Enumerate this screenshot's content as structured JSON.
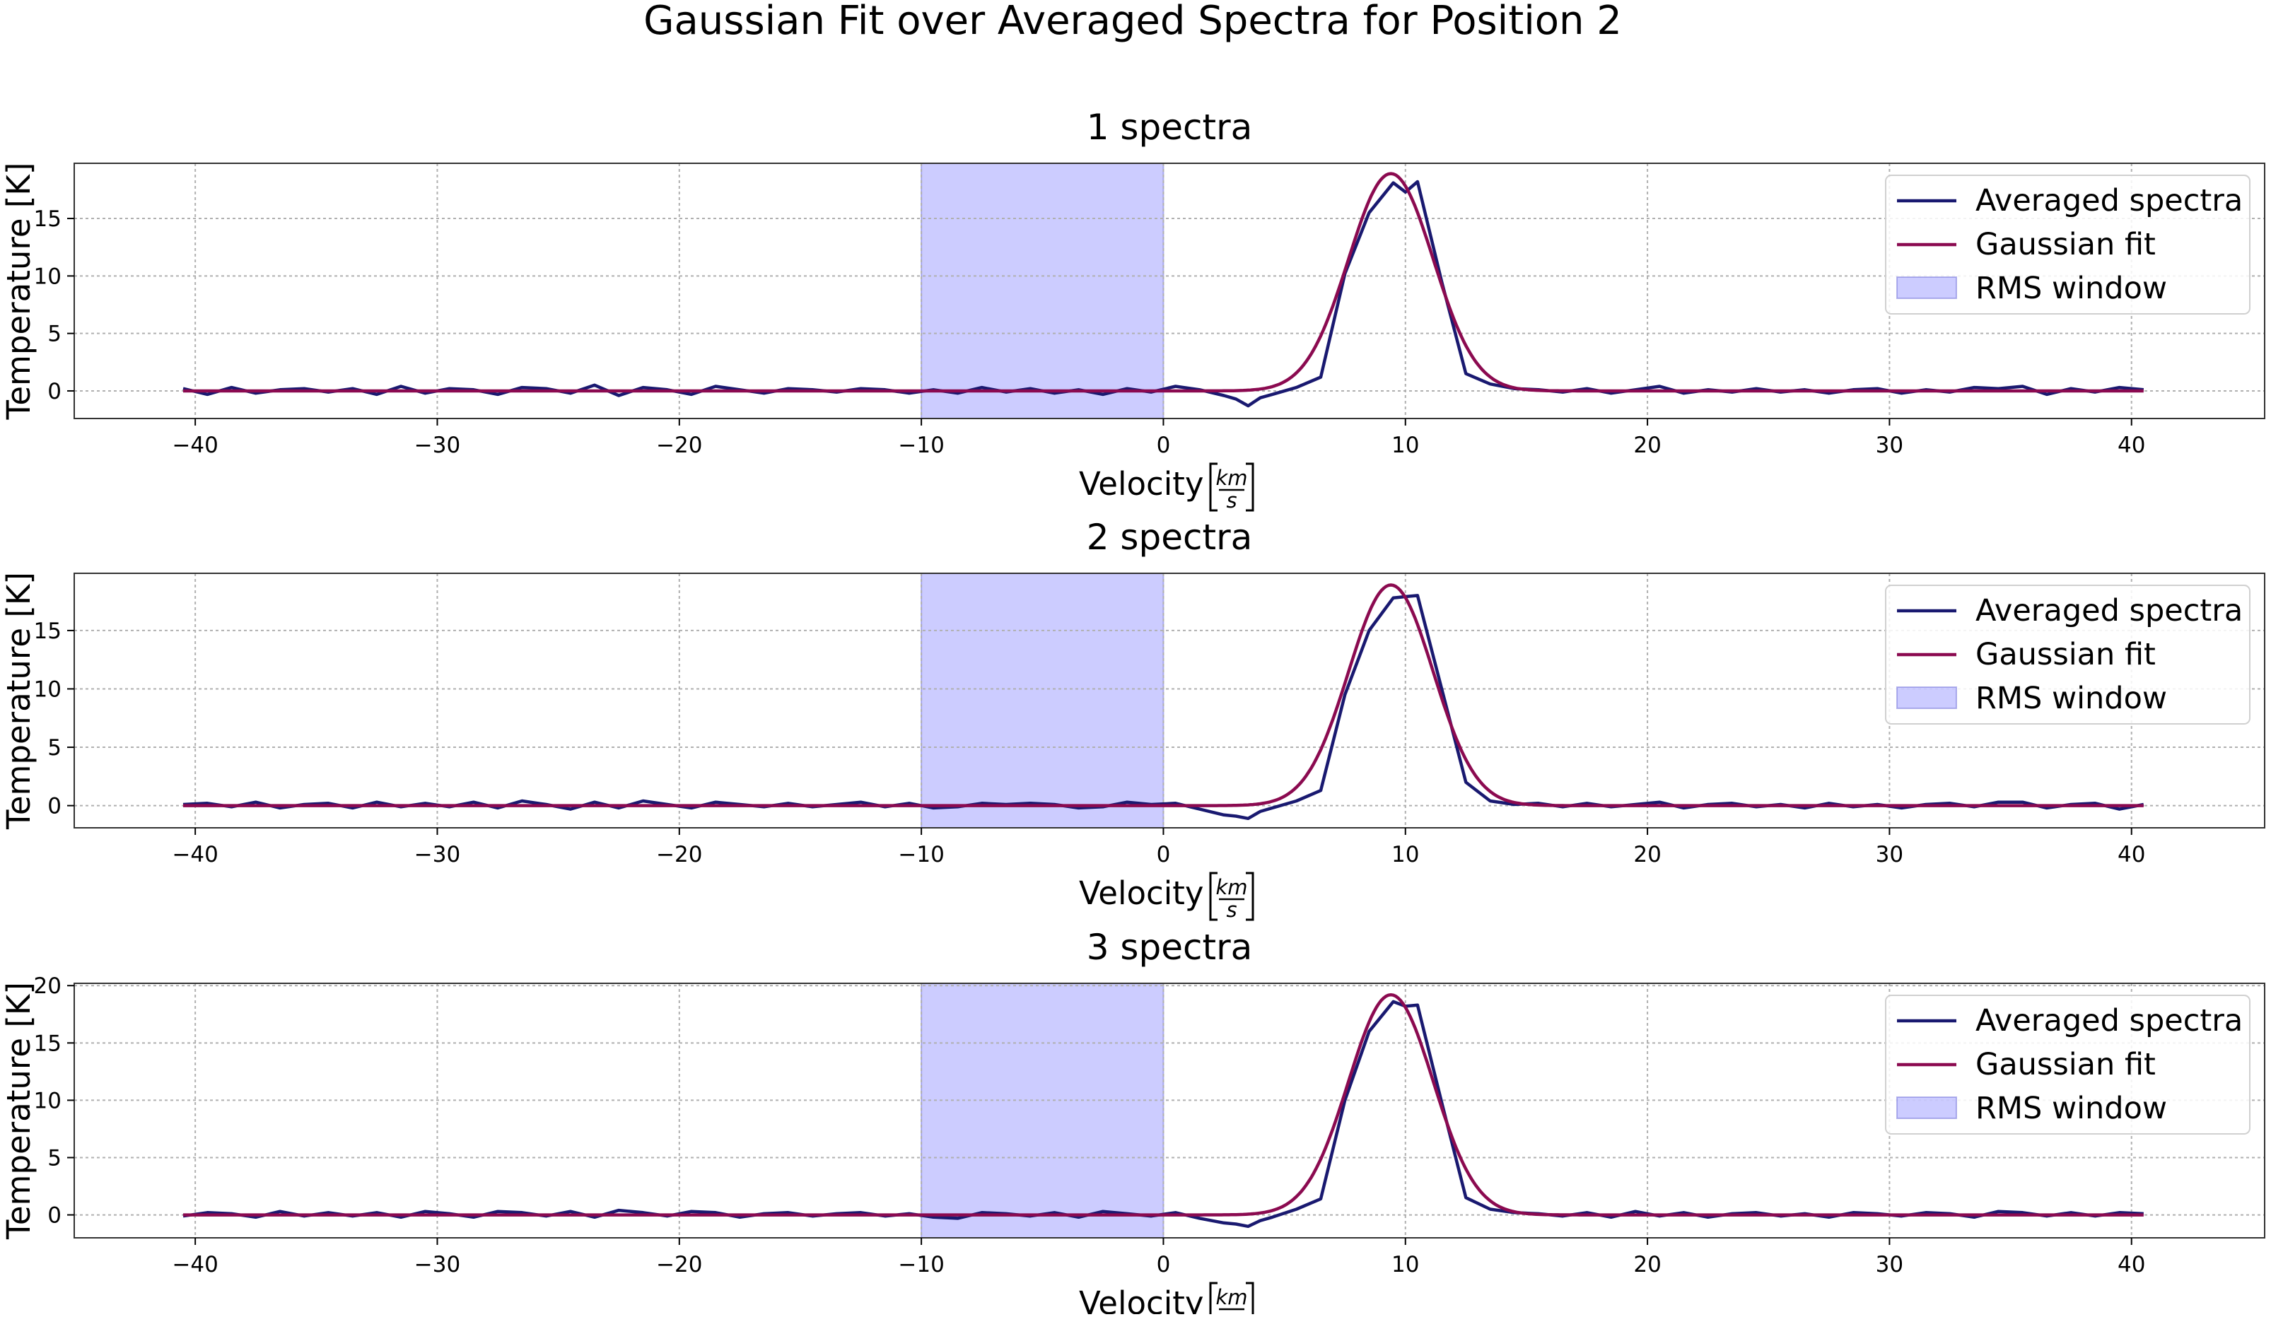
{
  "figure": {
    "suptitle": "Gaussian Fit over Averaged Spectra for Position 2"
  },
  "colors": {
    "averaged": "#191970",
    "gaussian": "#8b0a50",
    "rms_fill": "#8080ff",
    "grid": "#b0b0b0",
    "axes": "#333333"
  },
  "legend_labels": [
    "Averaged spectra",
    "Gaussian fit",
    "RMS window"
  ],
  "chart_data": [
    {
      "type": "line",
      "title": "1 spectra",
      "xlabel": "Velocity",
      "xlabel_unit_num": "km",
      "xlabel_unit_den": "s",
      "ylabel": "Temperature [K]",
      "xlim": [
        -45,
        45.5
      ],
      "ylim": [
        -2.4,
        19.8
      ],
      "xticks": [
        -40,
        -30,
        -20,
        -10,
        0,
        10,
        20,
        30,
        40
      ],
      "xtick_labels": [
        "−40",
        "−30",
        "−20",
        "−10",
        "0",
        "10",
        "20",
        "30",
        "40"
      ],
      "yticks": [
        0,
        5,
        10,
        15
      ],
      "ytick_labels": [
        "0",
        "5",
        "10",
        "15"
      ],
      "grid": true,
      "legend": "upper right",
      "rms_window": [
        -10,
        0
      ],
      "gaussian": {
        "amplitude": 18.9,
        "center": 9.4,
        "sigma": 1.75
      },
      "series": [
        {
          "name": "Averaged spectra",
          "x": [
            -40.5,
            -39.5,
            -38.5,
            -37.5,
            -36.5,
            -35.5,
            -34.5,
            -33.5,
            -32.5,
            -31.5,
            -30.5,
            -29.5,
            -28.5,
            -27.5,
            -26.5,
            -25.5,
            -24.5,
            -23.5,
            -22.5,
            -21.5,
            -20.5,
            -19.5,
            -18.5,
            -17.5,
            -16.5,
            -15.5,
            -14.5,
            -13.5,
            -12.5,
            -11.5,
            -10.5,
            -9.5,
            -8.5,
            -7.5,
            -6.5,
            -5.5,
            -4.5,
            -3.5,
            -2.5,
            -1.5,
            -0.5,
            0.5,
            1.5,
            2.5,
            3,
            3.5,
            4,
            4.5,
            5.5,
            6.5,
            7.5,
            8.5,
            9.5,
            10,
            10.5,
            11.5,
            12.5,
            13.5,
            14.5,
            15.5,
            16.5,
            17.5,
            18.5,
            19.5,
            20.5,
            21.5,
            22.5,
            23.5,
            24.5,
            25.5,
            26.5,
            27.5,
            28.5,
            29.5,
            30.5,
            31.5,
            32.5,
            33.5,
            34.5,
            35.5,
            36.5,
            37.5,
            38.5,
            39.5,
            40.5
          ],
          "values": [
            0.2,
            -0.3,
            0.3,
            -0.2,
            0.1,
            0.2,
            -0.1,
            0.2,
            -0.3,
            0.4,
            -0.2,
            0.2,
            0.1,
            -0.3,
            0.3,
            0.2,
            -0.2,
            0.5,
            -0.4,
            0.3,
            0.1,
            -0.3,
            0.4,
            0.1,
            -0.2,
            0.2,
            0.1,
            -0.1,
            0.2,
            0.1,
            -0.2,
            0.1,
            -0.2,
            0.3,
            -0.1,
            0.2,
            -0.2,
            0.1,
            -0.3,
            0.2,
            -0.1,
            0.4,
            0.1,
            -0.4,
            -0.7,
            -1.3,
            -0.6,
            -0.3,
            0.3,
            1.2,
            10.2,
            15.5,
            18.1,
            17.3,
            18.2,
            9.5,
            1.5,
            0.6,
            0.2,
            0.1,
            -0.1,
            0.2,
            -0.2,
            0.1,
            0.4,
            -0.2,
            0.1,
            -0.1,
            0.2,
            -0.1,
            0.1,
            -0.2,
            0.1,
            0.2,
            -0.2,
            0.1,
            -0.1,
            0.3,
            0.2,
            0.4,
            -0.3,
            0.2,
            -0.1,
            0.3,
            0.1
          ]
        },
        {
          "name": "Gaussian fit",
          "values": "gaussian(amplitude, center, sigma)"
        }
      ]
    },
    {
      "type": "line",
      "title": "2 spectra",
      "xlabel": "Velocity",
      "xlabel_unit_num": "km",
      "xlabel_unit_den": "s",
      "ylabel": "Temperature [K]",
      "xlim": [
        -45,
        45.5
      ],
      "ylim": [
        -1.9,
        19.9
      ],
      "xticks": [
        -40,
        -30,
        -20,
        -10,
        0,
        10,
        20,
        30,
        40
      ],
      "xtick_labels": [
        "−40",
        "−30",
        "−20",
        "−10",
        "0",
        "10",
        "20",
        "30",
        "40"
      ],
      "yticks": [
        0,
        5,
        10,
        15
      ],
      "ytick_labels": [
        "0",
        "5",
        "10",
        "15"
      ],
      "grid": true,
      "legend": "upper right",
      "rms_window": [
        -10,
        0
      ],
      "gaussian": {
        "amplitude": 18.9,
        "center": 9.4,
        "sigma": 1.75
      },
      "series": [
        {
          "name": "Averaged spectra",
          "x": [
            -40.5,
            -39.5,
            -38.5,
            -37.5,
            -36.5,
            -35.5,
            -34.5,
            -33.5,
            -32.5,
            -31.5,
            -30.5,
            -29.5,
            -28.5,
            -27.5,
            -26.5,
            -25.5,
            -24.5,
            -23.5,
            -22.5,
            -21.5,
            -20.5,
            -19.5,
            -18.5,
            -17.5,
            -16.5,
            -15.5,
            -14.5,
            -13.5,
            -12.5,
            -11.5,
            -10.5,
            -9.5,
            -8.5,
            -7.5,
            -6.5,
            -5.5,
            -4.5,
            -3.5,
            -2.5,
            -1.5,
            -0.5,
            0.5,
            1.5,
            2.5,
            3,
            3.5,
            4,
            4.5,
            5.5,
            6.5,
            7.5,
            8.5,
            9.5,
            10,
            10.5,
            11.5,
            12.5,
            13.5,
            14.5,
            15.5,
            16.5,
            17.5,
            18.5,
            19.5,
            20.5,
            21.5,
            22.5,
            23.5,
            24.5,
            25.5,
            26.5,
            27.5,
            28.5,
            29.5,
            30.5,
            31.5,
            32.5,
            33.5,
            34.5,
            35.5,
            36.5,
            37.5,
            38.5,
            39.5,
            40.5
          ],
          "values": [
            0.1,
            0.2,
            -0.1,
            0.3,
            -0.2,
            0.1,
            0.2,
            -0.2,
            0.3,
            -0.1,
            0.2,
            -0.1,
            0.3,
            -0.2,
            0.4,
            0.1,
            -0.3,
            0.3,
            -0.2,
            0.4,
            0.1,
            -0.2,
            0.3,
            0.1,
            -0.1,
            0.2,
            -0.1,
            0.1,
            0.3,
            -0.1,
            0.2,
            -0.2,
            -0.1,
            0.2,
            0.1,
            0.2,
            0.1,
            -0.2,
            -0.1,
            0.3,
            0.1,
            0.2,
            -0.3,
            -0.8,
            -0.9,
            -1.1,
            -0.5,
            -0.2,
            0.4,
            1.3,
            9.5,
            15.0,
            17.8,
            17.9,
            18.0,
            10.0,
            2.0,
            0.4,
            0.1,
            0.2,
            -0.1,
            0.2,
            -0.1,
            0.1,
            0.3,
            -0.2,
            0.1,
            0.2,
            -0.1,
            0.1,
            -0.2,
            0.2,
            -0.1,
            0.1,
            -0.2,
            0.1,
            0.2,
            -0.1,
            0.3,
            0.3,
            -0.2,
            0.1,
            0.2,
            -0.3,
            0.1
          ]
        },
        {
          "name": "Gaussian fit",
          "values": "gaussian(amplitude, center, sigma)"
        }
      ]
    },
    {
      "type": "line",
      "title": "3 spectra",
      "xlabel": "Velocity",
      "xlabel_unit_num": "km",
      "xlabel_unit_den": "s",
      "ylabel": "Temperature [K]",
      "xlim": [
        -45,
        45.5
      ],
      "ylim": [
        -2.0,
        20.2
      ],
      "xticks": [
        -40,
        -30,
        -20,
        -10,
        0,
        10,
        20,
        30,
        40
      ],
      "xtick_labels": [
        "−40",
        "−30",
        "−20",
        "−10",
        "0",
        "10",
        "20",
        "30",
        "40"
      ],
      "yticks": [
        0,
        5,
        10,
        15,
        20
      ],
      "ytick_labels": [
        "0",
        "5",
        "10",
        "15",
        "20"
      ],
      "grid": true,
      "legend": "upper right",
      "rms_window": [
        -10,
        0
      ],
      "gaussian": {
        "amplitude": 19.2,
        "center": 9.4,
        "sigma": 1.75
      },
      "series": [
        {
          "name": "Averaged spectra",
          "x": [
            -40.5,
            -39.5,
            -38.5,
            -37.5,
            -36.5,
            -35.5,
            -34.5,
            -33.5,
            -32.5,
            -31.5,
            -30.5,
            -29.5,
            -28.5,
            -27.5,
            -26.5,
            -25.5,
            -24.5,
            -23.5,
            -22.5,
            -21.5,
            -20.5,
            -19.5,
            -18.5,
            -17.5,
            -16.5,
            -15.5,
            -14.5,
            -13.5,
            -12.5,
            -11.5,
            -10.5,
            -9.5,
            -8.5,
            -7.5,
            -6.5,
            -5.5,
            -4.5,
            -3.5,
            -2.5,
            -1.5,
            -0.5,
            0.5,
            1.5,
            2.5,
            3,
            3.5,
            4,
            4.5,
            5.5,
            6.5,
            7.5,
            8.5,
            9.5,
            10,
            10.5,
            11.5,
            12.5,
            13.5,
            14.5,
            15.5,
            16.5,
            17.5,
            18.5,
            19.5,
            20.5,
            21.5,
            22.5,
            23.5,
            24.5,
            25.5,
            26.5,
            27.5,
            28.5,
            29.5,
            30.5,
            31.5,
            32.5,
            33.5,
            34.5,
            35.5,
            36.5,
            37.5,
            38.5,
            39.5,
            40.5
          ],
          "values": [
            -0.1,
            0.2,
            0.1,
            -0.2,
            0.3,
            -0.1,
            0.2,
            -0.1,
            0.2,
            -0.2,
            0.3,
            0.1,
            -0.2,
            0.3,
            0.2,
            -0.1,
            0.3,
            -0.2,
            0.4,
            0.2,
            -0.1,
            0.3,
            0.2,
            -0.2,
            0.1,
            0.2,
            -0.1,
            0.1,
            0.2,
            -0.1,
            0.1,
            -0.2,
            -0.3,
            0.2,
            0.1,
            -0.1,
            0.2,
            -0.2,
            0.3,
            0.1,
            -0.1,
            0.2,
            -0.3,
            -0.7,
            -0.8,
            -1.0,
            -0.5,
            -0.2,
            0.5,
            1.4,
            10.0,
            16.0,
            18.6,
            18.2,
            18.3,
            9.8,
            1.5,
            0.5,
            0.2,
            0.1,
            -0.1,
            0.2,
            -0.2,
            0.3,
            -0.1,
            0.2,
            -0.2,
            0.1,
            0.2,
            -0.1,
            0.1,
            -0.2,
            0.2,
            0.1,
            -0.1,
            0.2,
            0.1,
            -0.2,
            0.3,
            0.2,
            -0.1,
            0.2,
            -0.1,
            0.2,
            0.1
          ]
        },
        {
          "name": "Gaussian fit",
          "values": "gaussian(amplitude, center, sigma)"
        }
      ]
    }
  ]
}
